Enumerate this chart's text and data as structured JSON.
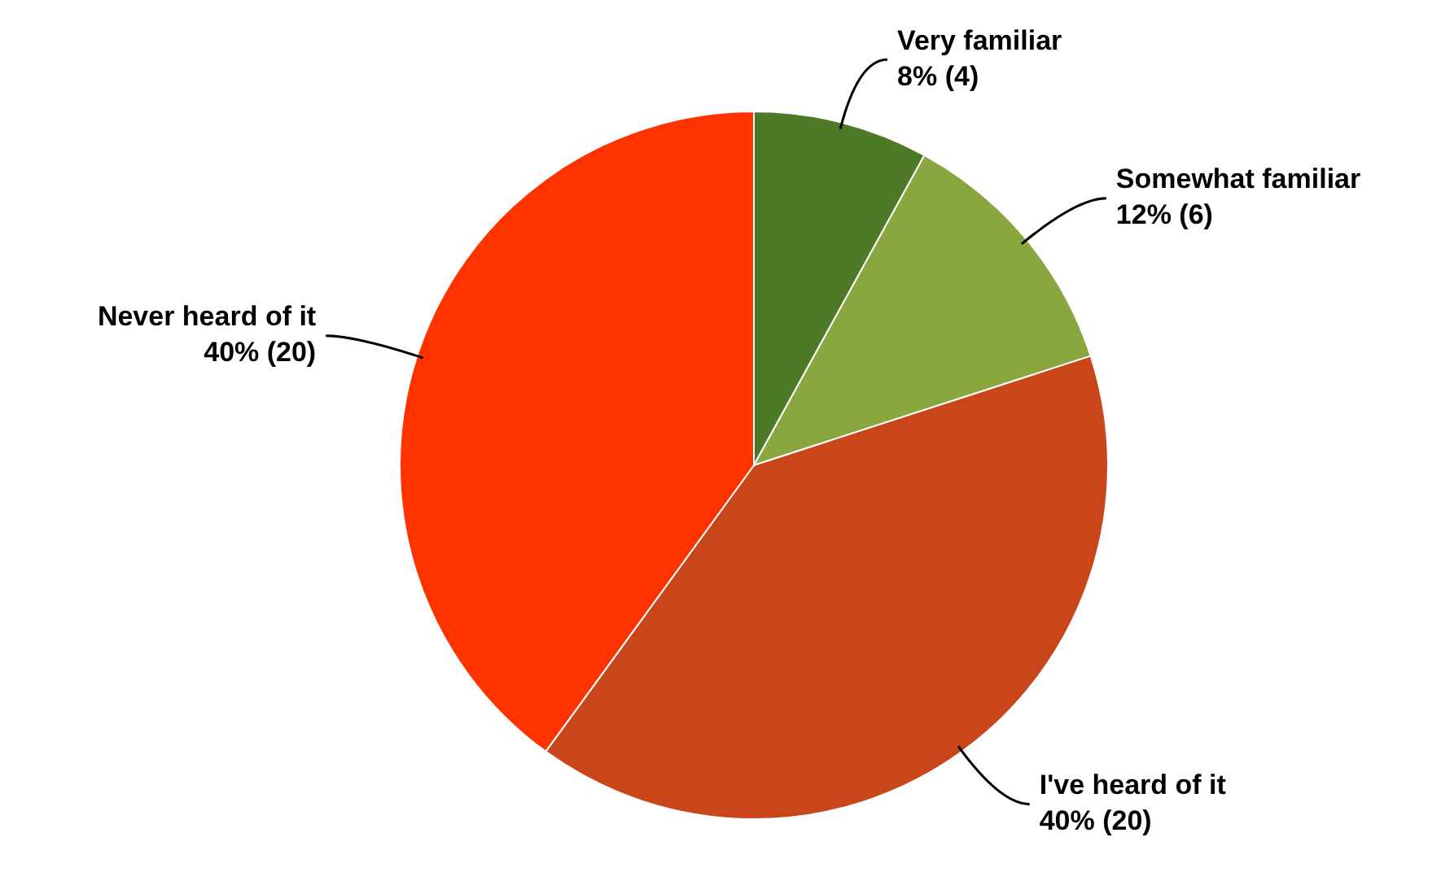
{
  "chart_data": {
    "type": "pie",
    "categories": [
      "Very familiar",
      "Somewhat familiar",
      "I've heard of it",
      "Never heard of it"
    ],
    "values": [
      4,
      6,
      20,
      20
    ],
    "value_labels": [
      "8% (4)",
      "12% (6)",
      "40% (20)",
      "40% (20)"
    ],
    "colors": [
      "#4e7a27",
      "#8aa63f",
      "#c9461b",
      "#ff3300"
    ],
    "legend": false
  }
}
